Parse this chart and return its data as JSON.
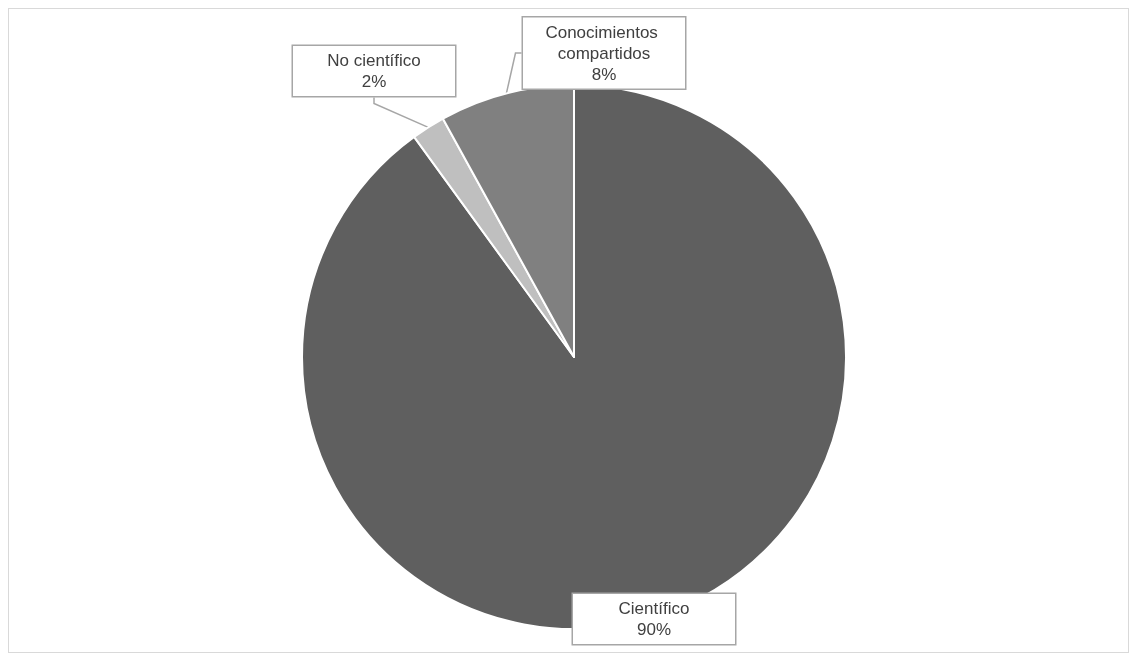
{
  "chart_data": {
    "type": "pie",
    "categories": [
      "Científico",
      "No científico",
      "Conocimientos compartidos"
    ],
    "values": [
      90,
      2,
      8
    ],
    "value_labels": [
      "90%",
      "2%",
      "8%"
    ],
    "colors": [
      "#5f5f5f",
      "#bfbfbf",
      "#808080"
    ],
    "legend": false
  }
}
